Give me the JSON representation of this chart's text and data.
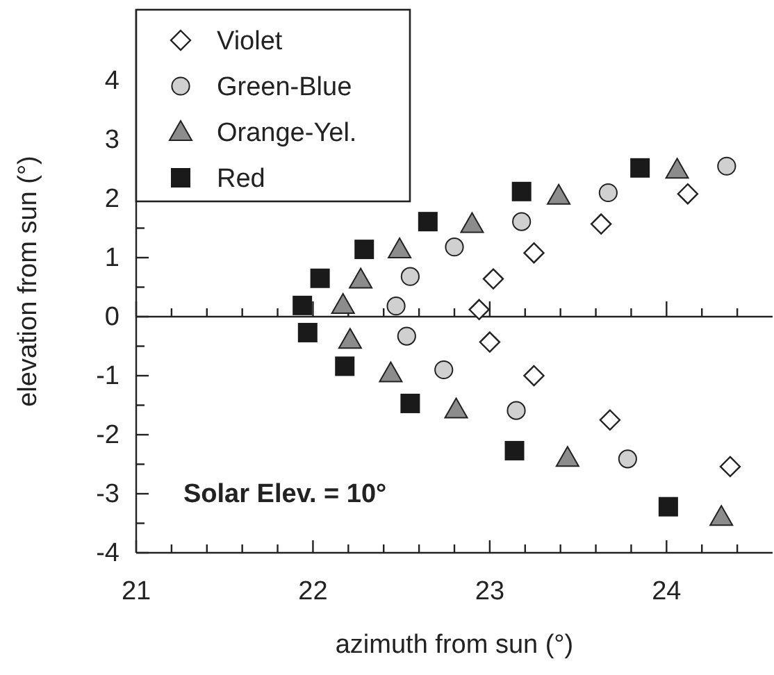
{
  "chart_data": {
    "type": "scatter",
    "xlabel": "azimuth from sun (°)",
    "ylabel": "elevation from sun (°)",
    "xlim": [
      21,
      24.6
    ],
    "ylim": [
      -4,
      5.2
    ],
    "xticks": [
      21,
      {
        "value": 21.2,
        "label": null
      },
      {
        "value": 21.4,
        "label": null
      },
      {
        "value": 21.6,
        "label": null
      },
      {
        "value": 21.8,
        "label": null
      },
      22,
      {
        "value": 22.2,
        "label": null
      },
      {
        "value": 22.4,
        "label": null
      },
      {
        "value": 22.6,
        "label": null
      },
      {
        "value": 22.8,
        "label": null
      },
      23,
      {
        "value": 23.2,
        "label": null
      },
      {
        "value": 23.4,
        "label": null
      },
      {
        "value": 23.6,
        "label": null
      },
      {
        "value": 23.8,
        "label": null
      },
      24,
      {
        "value": 24.2,
        "label": null
      },
      {
        "value": 24.4,
        "label": null
      }
    ],
    "yticks": [
      -4,
      {
        "value": -3.5,
        "label": null
      },
      -3,
      {
        "value": -2.5,
        "label": null
      },
      -2,
      {
        "value": -1.5,
        "label": null
      },
      -1,
      {
        "value": -0.5,
        "label": null
      },
      0,
      {
        "value": 0.5,
        "label": null
      },
      1,
      {
        "value": 1.5,
        "label": null
      },
      2,
      {
        "value": 2.5,
        "label": null
      },
      3,
      {
        "value": 3.5,
        "label": null
      },
      4,
      {
        "value": 4.5,
        "label": null
      }
    ],
    "ref_lines": [
      {
        "axis": "y",
        "value": 0,
        "color": "#222222"
      }
    ],
    "legend": "top left",
    "grid": false,
    "annotations": [
      "Solar Elev. = 10°"
    ],
    "series": [
      {
        "name": "Violet",
        "color": "#ffffff",
        "marker": "diamond",
        "x": [
          22.94,
          23.02,
          23.25,
          23.63,
          24.12,
          23.0,
          23.25,
          23.68,
          24.36
        ],
        "values": [
          0.12,
          0.64,
          1.08,
          1.57,
          2.08,
          -0.43,
          -1.0,
          -1.75,
          -2.54
        ]
      },
      {
        "name": "Green-Blue",
        "color": "#d0d0d0",
        "marker": "circle",
        "x": [
          22.47,
          22.55,
          22.8,
          23.18,
          23.67,
          24.34,
          22.53,
          22.74,
          23.15,
          23.78
        ],
        "values": [
          0.18,
          0.68,
          1.18,
          1.61,
          2.1,
          2.55,
          -0.33,
          -0.9,
          -1.59,
          -2.41
        ]
      },
      {
        "name": "Orange-Yel.",
        "color": "#8c8c8c",
        "marker": "triangle",
        "x": [
          22.17,
          22.27,
          22.49,
          22.9,
          23.39,
          24.06,
          22.21,
          22.44,
          22.81,
          23.44,
          24.31
        ],
        "values": [
          0.2,
          0.63,
          1.14,
          1.57,
          2.05,
          2.49,
          -0.39,
          -0.96,
          -1.57,
          -2.39,
          -3.39
        ]
      },
      {
        "name": "Red",
        "color": "#1a1a1a",
        "marker": "square",
        "x": [
          21.94,
          22.04,
          22.29,
          22.65,
          23.18,
          23.85,
          21.97,
          22.18,
          22.55,
          23.14,
          24.01
        ],
        "values": [
          0.19,
          0.65,
          1.14,
          1.61,
          2.12,
          2.52,
          -0.27,
          -0.84,
          -1.47,
          -2.27,
          -3.22
        ]
      }
    ]
  }
}
